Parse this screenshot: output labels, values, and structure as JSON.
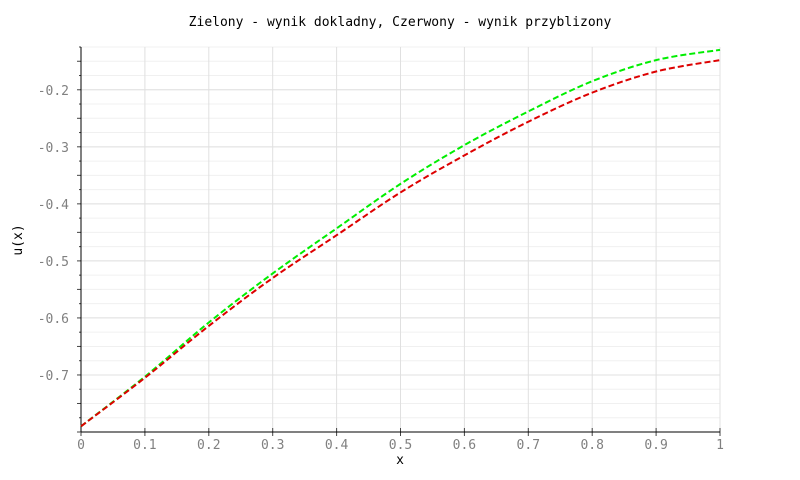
{
  "chart_data": {
    "type": "line",
    "title": "Zielony - wynik dokladny, Czerwony - wynik przyblizony",
    "xlabel": "x",
    "ylabel": "u(x)",
    "xlim": [
      0,
      1
    ],
    "ylim": [
      -0.8,
      -0.125
    ],
    "xticks": [
      "0",
      "0.1",
      "0.2",
      "0.3",
      "0.4",
      "0.5",
      "0.6",
      "0.7",
      "0.8",
      "0.9",
      "1"
    ],
    "yticks": [
      "-0.2",
      "-0.3",
      "-0.4",
      "-0.5",
      "-0.6",
      "-0.7"
    ],
    "grid": true,
    "x": [
      0,
      0.1,
      0.2,
      0.3,
      0.4,
      0.5,
      0.6,
      0.7,
      0.8,
      0.9,
      1.0
    ],
    "series": [
      {
        "color": "#00ee00",
        "values": [
          -0.79,
          -0.703,
          -0.608,
          -0.522,
          -0.443,
          -0.365,
          -0.297,
          -0.238,
          -0.185,
          -0.148,
          -0.13
        ]
      },
      {
        "color": "#dd0000",
        "values": [
          -0.79,
          -0.705,
          -0.614,
          -0.53,
          -0.455,
          -0.38,
          -0.315,
          -0.256,
          -0.205,
          -0.168,
          -0.148
        ]
      }
    ]
  }
}
